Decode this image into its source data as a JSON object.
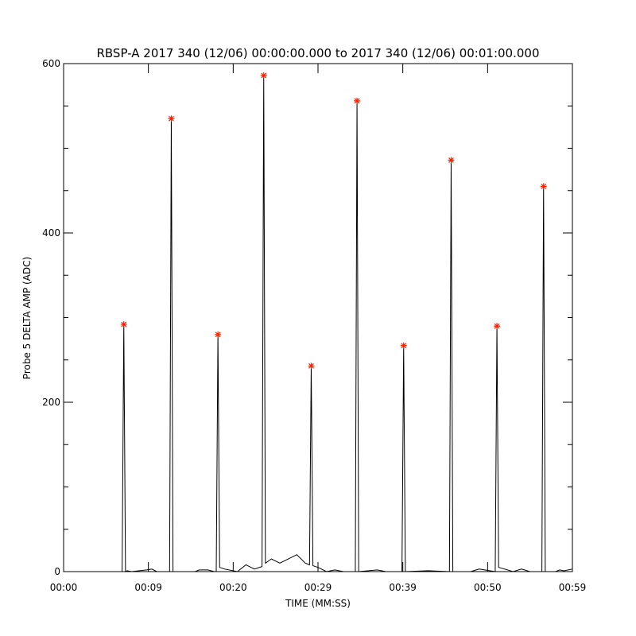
{
  "chart_data": {
    "type": "line",
    "title": "RBSP-A 2017 340 (12/06) 00:00:00.000 to 2017 340 (12/06) 00:01:00.000",
    "xlabel": "TIME (MM:SS)",
    "ylabel": "Probe 5 DELTA AMP (ADC)",
    "xlim": [
      0,
      60
    ],
    "ylim": [
      0,
      600
    ],
    "xticks": [
      {
        "value": 0,
        "label": "00:00"
      },
      {
        "value": 10,
        "label": "00:09"
      },
      {
        "value": 20,
        "label": "00:20"
      },
      {
        "value": 30,
        "label": "00:29"
      },
      {
        "value": 40,
        "label": "00:39"
      },
      {
        "value": 50,
        "label": "00:50"
      },
      {
        "value": 60,
        "label": "00:59"
      }
    ],
    "yticks": [
      {
        "value": 0,
        "label": "0"
      },
      200,
      400,
      600
    ],
    "yminorticks": [
      50,
      100,
      150,
      250,
      300,
      350,
      450,
      500,
      550
    ],
    "series": [
      {
        "color": "#000000",
        "x": [
          0,
          6.9,
          7.1,
          7.3,
          7.5,
          8,
          9.8,
          10.4,
          11,
          12.5,
          12.7,
          12.9,
          15.5,
          16,
          17,
          17.8,
          18.0,
          18.2,
          18.4,
          19,
          20.5,
          21.5,
          22.5,
          23.4,
          23.6,
          23.8,
          24.5,
          25.5,
          26.5,
          27.5,
          28.5,
          29.0,
          29.2,
          29.4,
          30,
          31,
          32,
          33,
          34.4,
          34.6,
          34.8,
          37,
          38,
          39.9,
          40.1,
          40.3,
          43,
          45.5,
          45.7,
          45.9,
          48,
          49,
          50.9,
          51.1,
          51.3,
          52,
          53,
          54,
          55,
          56.4,
          56.6,
          56.8,
          58,
          58.5,
          59,
          60
        ],
        "values": [
          0,
          0,
          292,
          0,
          1,
          0,
          2,
          3,
          0,
          0,
          535,
          0,
          0,
          2,
          2,
          0,
          0,
          280,
          5,
          3,
          0,
          8,
          3,
          6,
          586,
          10,
          15,
          10,
          15,
          20,
          10,
          8,
          243,
          7,
          5,
          0,
          2,
          0,
          0,
          556,
          0,
          2,
          0,
          0,
          267,
          0,
          1,
          0,
          486,
          0,
          0,
          3,
          0,
          290,
          5,
          3,
          0,
          3,
          0,
          0,
          455,
          0,
          0,
          2,
          1,
          3
        ]
      },
      {
        "color": "#ff2000",
        "marker": "asterisk",
        "x": [
          7.1,
          12.7,
          18.2,
          23.6,
          29.2,
          34.6,
          40.1,
          45.7,
          51.1,
          56.6
        ],
        "values": [
          292,
          535,
          280,
          586,
          243,
          556,
          267,
          486,
          290,
          455
        ]
      }
    ]
  }
}
